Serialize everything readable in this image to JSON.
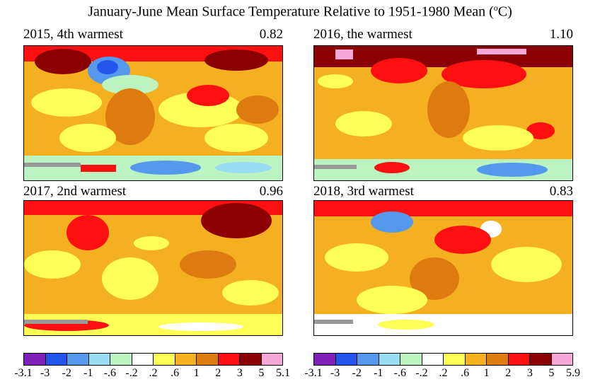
{
  "figure": {
    "title_main": "January-June Mean Surface Temperature Relative to 1951-1980 Mean (",
    "title_unit_sup": "o",
    "title_unit_end": "C)"
  },
  "panels": [
    {
      "label": "2015, 4th warmest",
      "value": "0.82"
    },
    {
      "label": "2016, the warmest",
      "value": "1.10"
    },
    {
      "label": "2017, 2nd warmest",
      "value": "0.96"
    },
    {
      "label": "2018, 3rd warmest",
      "value": "0.83"
    }
  ],
  "colorbar": {
    "colors": [
      "#7f1fb8",
      "#2255ee",
      "#5599ee",
      "#99ddf4",
      "#bbf4c0",
      "#ffffff",
      "#ffff55",
      "#f4b020",
      "#dd7a10",
      "#ff1010",
      "#8b0000",
      "#f8a8d8"
    ],
    "left_ticks": [
      "-3.1",
      "-3",
      "-2",
      "-1",
      "-.6",
      "-.2",
      ".2",
      ".6",
      "1",
      "2",
      "3",
      "5",
      "5.1"
    ],
    "right_ticks": [
      "-3.1",
      "-3",
      "-2",
      "-1",
      "-.6",
      "-.2",
      ".2",
      ".6",
      "1",
      "2",
      "3",
      "5",
      "5.9"
    ]
  }
}
